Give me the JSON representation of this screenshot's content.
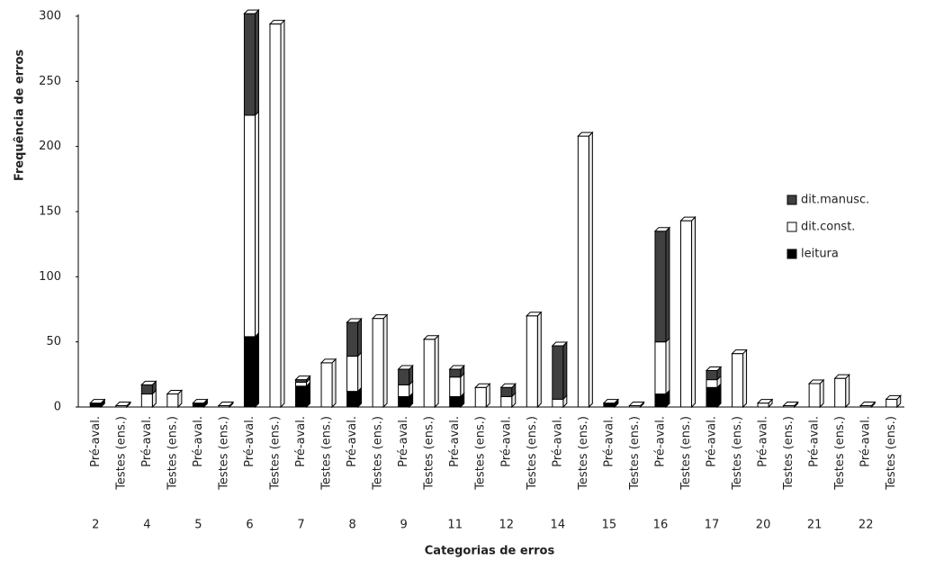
{
  "chart_data": {
    "type": "stacked-bar",
    "xlabel": "Categorias de erros",
    "ylabel": "Frequência de erros",
    "categories": [
      "Pré-aval.",
      "Testes (ens.)",
      "Pré-aval.",
      "Testes (ens.)",
      "Pré-aval.",
      "Testes (ens.)",
      "Pré-aval.",
      "Testes (ens.)",
      "Pré-aval.",
      "Testes (ens.)",
      "Pré-aval.",
      "Testes (ens.)",
      "Pré-aval.",
      "Testes (ens.)",
      "Pré-aval.",
      "Testes (ens.)",
      "Pré-aval.",
      "Testes (ens.)",
      "Pré-aval.",
      "Testes (ens.)",
      "Pré-aval.",
      "Testes (ens.)",
      "Pré-aval.",
      "Testes (ens.)",
      "Pré-aval.",
      "Testes (ens.)",
      "Pré-aval.",
      "Testes (ens.)",
      "Pré-aval.",
      "Testes (ens.)",
      "Pré-aval.",
      "Testes (ens.)"
    ],
    "groups": [
      "2",
      "4",
      "5",
      "6",
      "7",
      "8",
      "9",
      "11",
      "12",
      "14",
      "15",
      "16",
      "17",
      "20",
      "21",
      "22"
    ],
    "series": [
      {
        "name": "leitura",
        "color": "#000000",
        "values": [
          3,
          0,
          0,
          0,
          3,
          0,
          54,
          0,
          16,
          0,
          12,
          0,
          8,
          0,
          8,
          0,
          0,
          0,
          0,
          0,
          3,
          0,
          10,
          0,
          15,
          0,
          0,
          0,
          0,
          0,
          0,
          0
        ]
      },
      {
        "name": "dit.const.",
        "color": "#ffffff",
        "values": [
          0,
          1,
          10,
          10,
          0,
          1,
          170,
          294,
          3,
          34,
          27,
          68,
          9,
          52,
          15,
          15,
          8,
          70,
          6,
          208,
          0,
          1,
          40,
          143,
          6,
          41,
          3,
          1,
          18,
          22,
          1,
          6
        ]
      },
      {
        "name": "dit.manusc.",
        "color": "#404040",
        "values": [
          0,
          0,
          7,
          0,
          0,
          0,
          78,
          0,
          2,
          0,
          26,
          0,
          12,
          0,
          6,
          0,
          7,
          0,
          41,
          0,
          0,
          0,
          85,
          0,
          7,
          0,
          0,
          0,
          0,
          0,
          0,
          0
        ]
      }
    ],
    "ylim": [
      0,
      300
    ],
    "yticks": [
      0,
      50,
      100,
      150,
      200,
      250,
      300
    ],
    "grid": false,
    "legend": "right"
  }
}
